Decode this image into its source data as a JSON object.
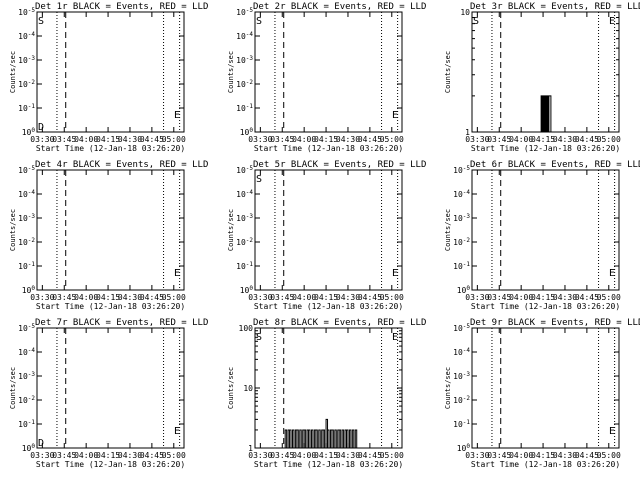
{
  "chart_data": [
    {
      "type": "line",
      "title": "Det 1r BLACK = Events, RED = LLD",
      "xlabel": "Start Time (12-Jan-18 03:26:20)",
      "ylabel": "Counts/sec",
      "scale_y": "log",
      "x_ticks": [
        "03:30",
        "03:45",
        "04:00",
        "04:15",
        "04:30",
        "04:45",
        "05:00"
      ],
      "y_ticks": [
        "10^0",
        "10^-1",
        "10^-2",
        "10^-3",
        "10^-4",
        "10^-5"
      ],
      "markers": [
        "S",
        "E",
        "D"
      ],
      "series": []
    },
    {
      "type": "line",
      "title": "Det 2r BLACK = Events, RED = LLD",
      "xlabel": "Start Time (12-Jan-18 03:26:20)",
      "ylabel": "Counts/sec",
      "scale_y": "log",
      "x_ticks": [
        "03:30",
        "03:45",
        "04:00",
        "04:15",
        "04:30",
        "04:45",
        "05:00"
      ],
      "y_ticks": [
        "10^0",
        "10^-1",
        "10^-2",
        "10^-3",
        "10^-4",
        "10^-5"
      ],
      "markers": [
        "S",
        "E"
      ],
      "series": []
    },
    {
      "type": "line",
      "title": "Det 3r BLACK = Events, RED = LLD",
      "xlabel": "Start Time (12-Jan-18 03:26:20)",
      "ylabel": "Counts/sec",
      "scale_y": "log",
      "x_ticks": [
        "03:30",
        "03:45",
        "04:00",
        "04:15",
        "04:30",
        "04:45",
        "05:00"
      ],
      "y_ticks": [
        "1",
        "10"
      ],
      "markers": [
        "S",
        "E"
      ],
      "series": [
        {
          "color": "#000000",
          "x": [
            "04:13:00",
            "04:13:40",
            "04:14:10",
            "04:14:40",
            "04:15:10",
            "04:15:40",
            "04:16:10",
            "04:16:40",
            "04:17:20",
            "04:18:00",
            "04:18:30",
            "04:19:00"
          ],
          "y": [
            1,
            2,
            1,
            2,
            1,
            2,
            1,
            2,
            1,
            2,
            1,
            2
          ]
        }
      ]
    },
    {
      "type": "line",
      "title": "Det 4r BLACK = Events, RED = LLD",
      "xlabel": "Start Time (12-Jan-18 03:26:20)",
      "ylabel": "Counts/sec",
      "scale_y": "log",
      "x_ticks": [
        "03:30",
        "03:45",
        "04:00",
        "04:15",
        "04:30",
        "04:45",
        "05:00"
      ],
      "y_ticks": [
        "10^0",
        "10^-1",
        "10^-2",
        "10^-3",
        "10^-4",
        "10^-5"
      ],
      "markers": [
        "E"
      ],
      "series": []
    },
    {
      "type": "line",
      "title": "Det 5r BLACK = Events, RED = LLD",
      "xlabel": "Start Time (12-Jan-18 03:26:20)",
      "ylabel": "Counts/sec",
      "scale_y": "log",
      "x_ticks": [
        "03:30",
        "03:45",
        "04:00",
        "04:15",
        "04:30",
        "04:45",
        "05:00"
      ],
      "y_ticks": [
        "10^0",
        "10^-1",
        "10^-2",
        "10^-3",
        "10^-4",
        "10^-5"
      ],
      "markers": [
        "S",
        "E"
      ],
      "series": []
    },
    {
      "type": "line",
      "title": "Det 6r BLACK = Events, RED = LLD",
      "xlabel": "Start Time (12-Jan-18 03:26:20)",
      "ylabel": "Counts/sec",
      "scale_y": "log",
      "x_ticks": [
        "03:30",
        "03:45",
        "04:00",
        "04:15",
        "04:30",
        "04:45",
        "05:00"
      ],
      "y_ticks": [
        "10^0",
        "10^-1",
        "10^-2",
        "10^-3",
        "10^-4",
        "10^-5"
      ],
      "markers": [
        "E"
      ],
      "series": []
    },
    {
      "type": "line",
      "title": "Det 7r BLACK = Events, RED = LLD",
      "xlabel": "Start Time (12-Jan-18 03:26:20)",
      "ylabel": "Counts/sec",
      "scale_y": "log",
      "x_ticks": [
        "03:30",
        "03:45",
        "04:00",
        "04:15",
        "04:30",
        "04:45",
        "05:00"
      ],
      "y_ticks": [
        "10^0",
        "10^-1",
        "10^-2",
        "10^-3",
        "10^-4",
        "10^-5"
      ],
      "markers": [
        "D",
        "E"
      ],
      "series": []
    },
    {
      "type": "line",
      "title": "Det 8r BLACK = Events, RED = LLD",
      "xlabel": "Start Time (12-Jan-18 03:26:20)",
      "ylabel": "Counts/sec",
      "scale_y": "log",
      "x_ticks": [
        "03:30",
        "03:45",
        "04:00",
        "04:15",
        "04:30",
        "04:45",
        "05:00"
      ],
      "y_ticks": [
        "1",
        "10",
        "100"
      ],
      "markers": [
        "S",
        "E"
      ],
      "series": [
        {
          "color": "#000000",
          "x": [
            "03:47:00",
            "03:48:00",
            "03:49:00",
            "03:50:00",
            "03:51:00",
            "03:52:00",
            "03:53:00",
            "03:54:00",
            "03:55:00",
            "03:56:00",
            "03:57:00",
            "03:58:00",
            "03:59:00",
            "04:00:00",
            "04:01:00",
            "04:02:00",
            "04:03:00",
            "04:04:00",
            "04:05:00",
            "04:06:00",
            "04:07:00",
            "04:08:00",
            "04:09:00",
            "04:10:00",
            "04:11:00",
            "04:12:00",
            "04:13:00",
            "04:14:00",
            "04:15:00",
            "04:16:00",
            "04:17:00",
            "04:18:00",
            "04:19:00",
            "04:20:00",
            "04:21:00",
            "04:22:00",
            "04:23:00",
            "04:24:00",
            "04:25:00",
            "04:26:00",
            "04:27:00",
            "04:28:00",
            "04:29:00",
            "04:30:00",
            "04:31:00",
            "04:32:00",
            "04:33:00",
            "04:34:00",
            "04:35:00",
            "04:36:00"
          ],
          "y": [
            2,
            1,
            2,
            2,
            1,
            2,
            1,
            2,
            2,
            1,
            2,
            1,
            2,
            2,
            1,
            2,
            2,
            1,
            2,
            1,
            2,
            2,
            1,
            2,
            1,
            2,
            2,
            1,
            3,
            2,
            1,
            2,
            2,
            1,
            2,
            1,
            2,
            2,
            1,
            2,
            1,
            2,
            2,
            1,
            2,
            1,
            2,
            1,
            2,
            1
          ]
        }
      ]
    },
    {
      "type": "line",
      "title": "Det 9r BLACK = Events, RED = LLD",
      "xlabel": "Start Time (12-Jan-18 03:26:20)",
      "ylabel": "Counts/sec",
      "scale_y": "log",
      "x_ticks": [
        "03:30",
        "03:45",
        "04:00",
        "04:15",
        "04:30",
        "04:45",
        "05:00"
      ],
      "y_ticks": [
        "10^0",
        "10^-1",
        "10^-2",
        "10^-3",
        "10^-4",
        "10^-5"
      ],
      "markers": [
        "E"
      ],
      "series": []
    }
  ]
}
